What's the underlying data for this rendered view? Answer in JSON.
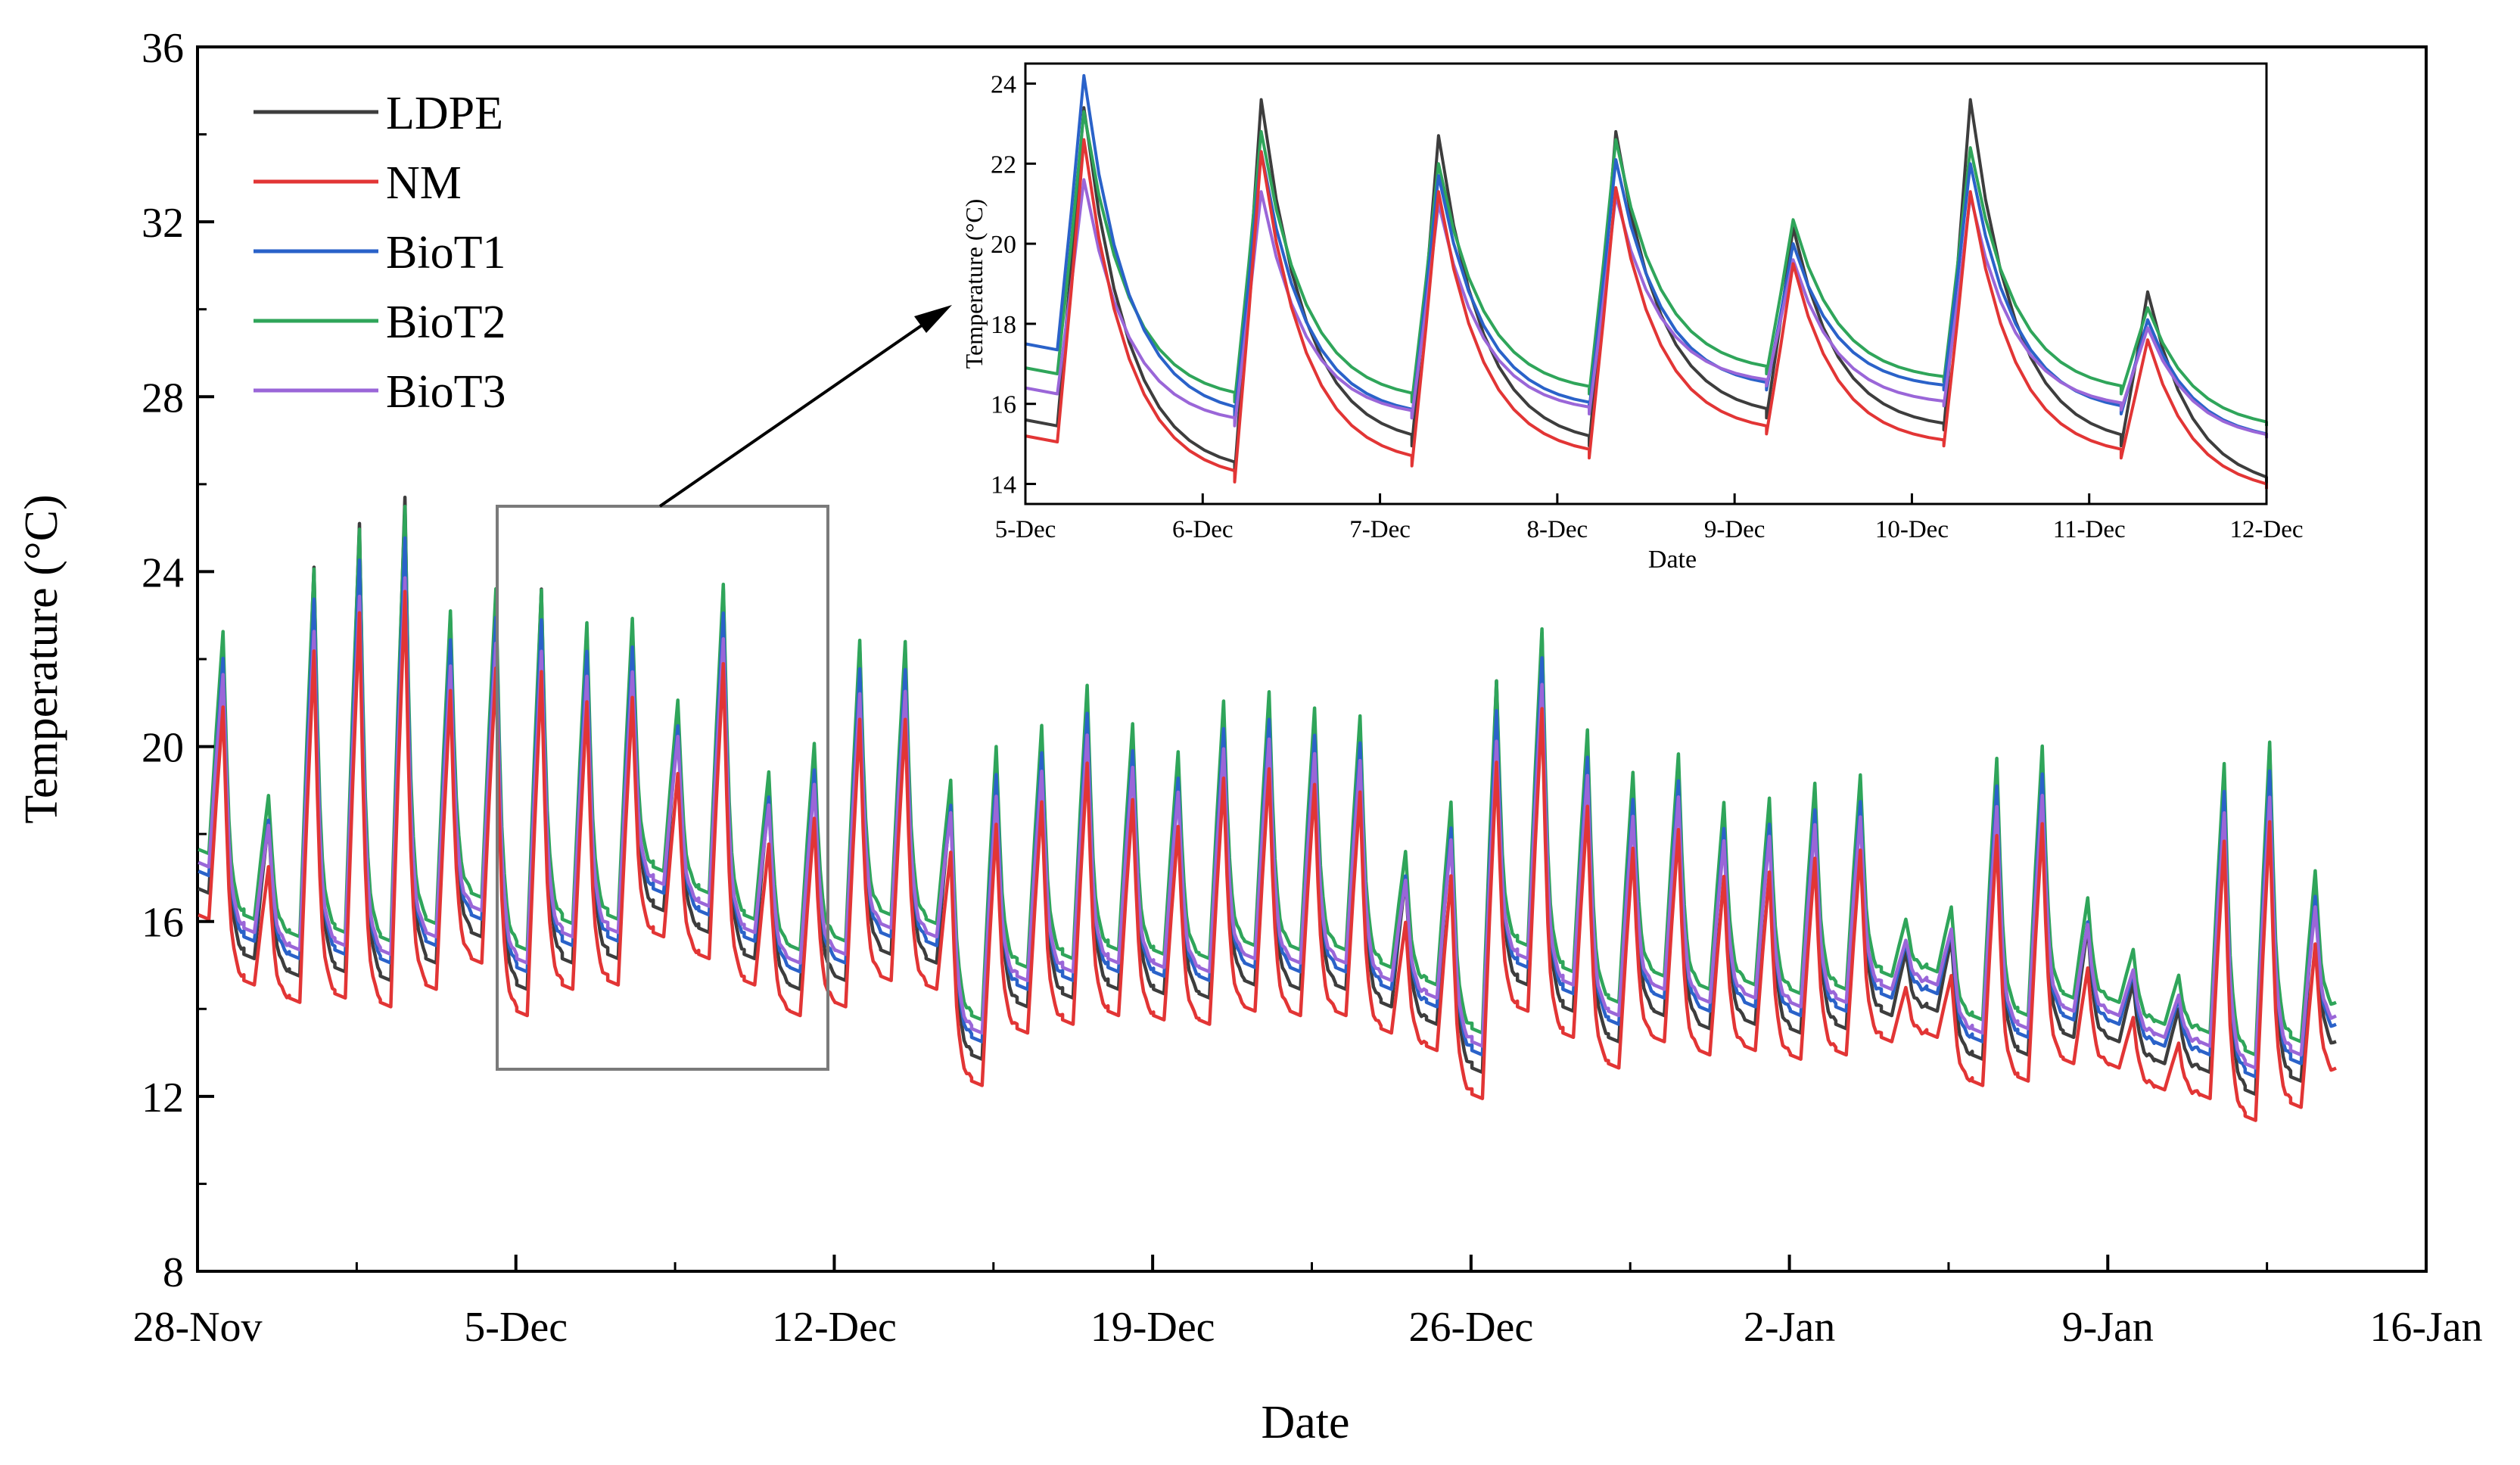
{
  "chart_data": [
    {
      "id": "main",
      "type": "line",
      "xlabel": "Date",
      "ylabel": "Temperature (°C)",
      "ylim": [
        8,
        36
      ],
      "yticks": [
        "8",
        "12",
        "16",
        "20",
        "24",
        "28",
        "32",
        "36"
      ],
      "xlim_days": [
        0,
        49
      ],
      "xticks": [
        {
          "day": 0,
          "label": "28-Nov"
        },
        {
          "day": 7,
          "label": "5-Dec"
        },
        {
          "day": 14,
          "label": "12-Dec"
        },
        {
          "day": 21,
          "label": "19-Dec"
        },
        {
          "day": 28,
          "label": "26-Dec"
        },
        {
          "day": 35,
          "label": "2-Jan"
        },
        {
          "day": 42,
          "label": "9-Jan"
        },
        {
          "day": 49,
          "label": "16-Jan"
        }
      ],
      "legend": [
        "LDPE",
        "NM",
        "BioT1",
        "BioT2",
        "BioT3"
      ],
      "legend_placement": "top-left",
      "daily_peaks_LDPE": [
        22.3,
        18.3,
        24.1,
        25.1,
        25.7,
        23.0,
        23.5,
        23.6,
        22.7,
        22.8,
        20.6,
        23.6,
        18.9,
        19.7,
        22.3,
        22.2,
        18.7,
        19.8,
        20.2,
        21.2,
        20.2,
        19.5,
        20.8,
        21.0,
        20.6,
        20.4,
        17.0,
        18.3,
        21.5,
        22.6,
        20.1,
        19.1,
        19.5,
        18.3,
        18.4,
        18.8,
        19.0,
        15.3,
        15.6,
        19.5,
        19.8,
        15.9,
        14.6,
        14.0,
        19.4,
        20.0,
        16.7
      ],
      "daily_minima_LDPE": [
        16.6,
        15.1,
        14.7,
        14.8,
        14.6,
        15.0,
        15.6,
        14.4,
        15.0,
        15.1,
        16.2,
        15.7,
        15.1,
        14.4,
        14.6,
        15.2,
        15.0,
        12.8,
        14.0,
        14.2,
        14.4,
        14.3,
        14.2,
        14.5,
        14.4,
        14.4,
        14.0,
        13.6,
        12.5,
        14.5,
        13.9,
        13.2,
        13.8,
        13.5,
        13.6,
        13.4,
        13.5,
        13.8,
        13.9,
        12.8,
        12.9,
        13.3,
        13.2,
        12.7,
        12.5,
        12.0,
        12.3,
        13.0
      ],
      "series_offsets": {
        "LDPE": 0.0,
        "NM": -0.6,
        "BioT1": 0.4,
        "BioT2": 0.9,
        "BioT3": 0.6
      }
    },
    {
      "id": "inset",
      "type": "line",
      "xlabel": "Date",
      "ylabel": "Temperature (°C)",
      "ylim": [
        13.5,
        24.5
      ],
      "yticks": [
        "14",
        "16",
        "18",
        "20",
        "22",
        "24"
      ],
      "xticks": [
        "5-Dec",
        "6-Dec",
        "7-Dec",
        "8-Dec",
        "9-Dec",
        "10-Dec",
        "11-Dec",
        "12-Dec"
      ],
      "series": [
        {
          "name": "LDPE",
          "peaks": [
            23.4,
            23.6,
            22.7,
            22.8,
            20.4,
            23.6,
            18.8
          ],
          "minima": [
            15.6,
            14.4,
            15.1,
            15.1,
            15.8,
            15.5,
            15.1,
            14.0
          ]
        },
        {
          "name": "NM",
          "peaks": [
            22.6,
            22.3,
            21.3,
            21.4,
            19.5,
            21.3,
            17.6
          ],
          "minima": [
            15.2,
            14.2,
            14.6,
            14.8,
            15.4,
            15.1,
            14.8,
            13.9
          ]
        },
        {
          "name": "BioT1",
          "peaks": [
            24.2,
            22.3,
            21.7,
            22.1,
            20.0,
            22.0,
            18.1
          ],
          "minima": [
            17.5,
            15.8,
            15.8,
            16.0,
            16.5,
            16.5,
            15.9,
            15.2
          ]
        },
        {
          "name": "BioT2",
          "peaks": [
            23.3,
            22.8,
            22.0,
            22.6,
            20.6,
            22.4,
            18.4
          ],
          "minima": [
            16.9,
            16.2,
            16.2,
            16.4,
            16.9,
            16.7,
            16.4,
            15.5
          ]
        },
        {
          "name": "BioT3",
          "peaks": [
            21.6,
            21.3,
            21.0,
            21.2,
            19.6,
            21.2,
            17.9
          ],
          "minima": [
            16.4,
            15.6,
            15.8,
            15.9,
            16.6,
            16.1,
            16.0,
            15.2
          ]
        }
      ]
    }
  ],
  "colors": {
    "LDPE": "#3d3d3d",
    "NM": "#e23535",
    "BioT1": "#2a62c9",
    "BioT2": "#2fa55a",
    "BioT3": "#9a66d8",
    "frame": "#000000",
    "zoom_box": "#7a7a7a"
  }
}
